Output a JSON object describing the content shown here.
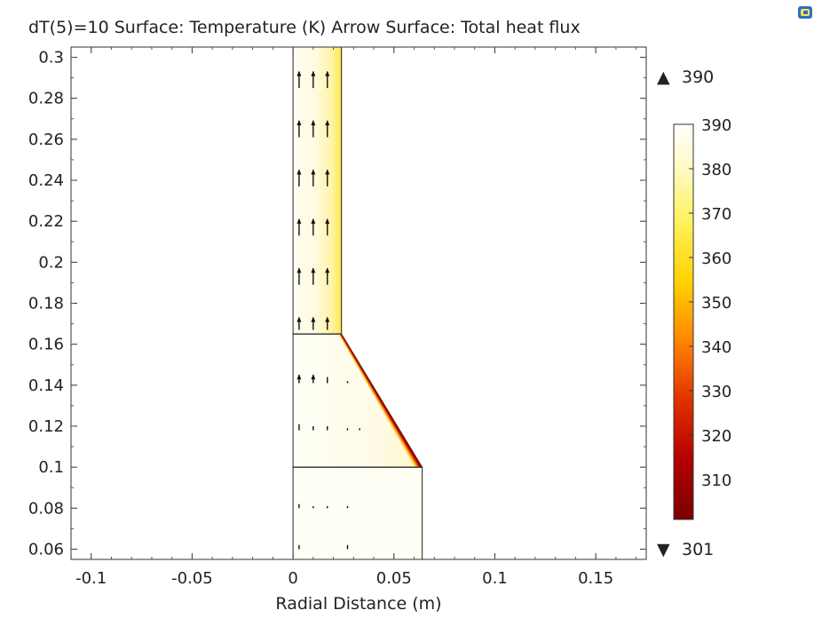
{
  "chart_data": {
    "type": "heatmap",
    "title": "dT(5)=10   Surface: Temperature (K)  Arrow Surface: Total heat flux",
    "xlabel": "Radial Distance (m)",
    "ylabel": "",
    "xlim": [
      -0.11,
      0.175
    ],
    "ylim": [
      0.055,
      0.305
    ],
    "x_ticks": [
      {
        "value": -0.1,
        "label": "-0.1"
      },
      {
        "value": -0.05,
        "label": "-0.05"
      },
      {
        "value": 0,
        "label": "0"
      },
      {
        "value": 0.05,
        "label": "0.05"
      },
      {
        "value": 0.1,
        "label": "0.1"
      },
      {
        "value": 0.15,
        "label": "0.15"
      }
    ],
    "y_ticks": [
      {
        "value": 0.06,
        "label": "0.06"
      },
      {
        "value": 0.08,
        "label": "0.08"
      },
      {
        "value": 0.1,
        "label": "0.1"
      },
      {
        "value": 0.12,
        "label": "0.12"
      },
      {
        "value": 0.14,
        "label": "0.14"
      },
      {
        "value": 0.16,
        "label": "0.16"
      },
      {
        "value": 0.18,
        "label": "0.18"
      },
      {
        "value": 0.2,
        "label": "0.2"
      },
      {
        "value": 0.22,
        "label": "0.22"
      },
      {
        "value": 0.24,
        "label": "0.24"
      },
      {
        "value": 0.26,
        "label": "0.26"
      },
      {
        "value": 0.28,
        "label": "0.28"
      },
      {
        "value": 0.3,
        "label": "0.3"
      }
    ],
    "geometry": {
      "column_top": {
        "r": [
          0,
          0.024
        ],
        "z": [
          0.165,
          0.305
        ]
      },
      "cone": {
        "r_inner": 0,
        "r_top": 0.024,
        "r_bottom": 0.064,
        "z": [
          0.1,
          0.165
        ]
      },
      "base": {
        "r": [
          0,
          0.064
        ],
        "z": [
          0.055,
          0.1
        ]
      }
    },
    "colorbar": {
      "colormap": "heat",
      "min": 301,
      "max": 390,
      "ticks": [
        {
          "value": 390,
          "label": "390"
        },
        {
          "value": 380,
          "label": "380"
        },
        {
          "value": 370,
          "label": "370"
        },
        {
          "value": 360,
          "label": "360"
        },
        {
          "value": 350,
          "label": "350"
        },
        {
          "value": 340,
          "label": "340"
        },
        {
          "value": 330,
          "label": "330"
        },
        {
          "value": 320,
          "label": "320"
        },
        {
          "value": 310,
          "label": "310"
        }
      ],
      "max_label": "390",
      "min_label": "301",
      "max_marker": "▲",
      "min_marker": "▼"
    },
    "arrows": [
      {
        "r": 0.003,
        "z": 0.285,
        "len": 0.008
      },
      {
        "r": 0.01,
        "z": 0.285,
        "len": 0.008
      },
      {
        "r": 0.017,
        "z": 0.285,
        "len": 0.008
      },
      {
        "r": 0.003,
        "z": 0.261,
        "len": 0.008
      },
      {
        "r": 0.01,
        "z": 0.261,
        "len": 0.008
      },
      {
        "r": 0.017,
        "z": 0.261,
        "len": 0.008
      },
      {
        "r": 0.003,
        "z": 0.237,
        "len": 0.008
      },
      {
        "r": 0.01,
        "z": 0.237,
        "len": 0.008
      },
      {
        "r": 0.017,
        "z": 0.237,
        "len": 0.008
      },
      {
        "r": 0.003,
        "z": 0.213,
        "len": 0.008
      },
      {
        "r": 0.01,
        "z": 0.213,
        "len": 0.008
      },
      {
        "r": 0.017,
        "z": 0.213,
        "len": 0.008
      },
      {
        "r": 0.003,
        "z": 0.189,
        "len": 0.008
      },
      {
        "r": 0.01,
        "z": 0.189,
        "len": 0.008
      },
      {
        "r": 0.017,
        "z": 0.189,
        "len": 0.008
      },
      {
        "r": 0.003,
        "z": 0.167,
        "len": 0.006
      },
      {
        "r": 0.01,
        "z": 0.167,
        "len": 0.006
      },
      {
        "r": 0.017,
        "z": 0.167,
        "len": 0.006
      },
      {
        "r": 0.003,
        "z": 0.141,
        "len": 0.004
      },
      {
        "r": 0.01,
        "z": 0.141,
        "len": 0.004
      },
      {
        "r": 0.017,
        "z": 0.141,
        "len": 0.003
      },
      {
        "r": 0.027,
        "z": 0.141,
        "len": 0.001
      },
      {
        "r": 0.003,
        "z": 0.118,
        "len": 0.003
      },
      {
        "r": 0.01,
        "z": 0.118,
        "len": 0.002
      },
      {
        "r": 0.017,
        "z": 0.118,
        "len": 0.002
      },
      {
        "r": 0.027,
        "z": 0.118,
        "len": 0.001
      },
      {
        "r": 0.033,
        "z": 0.118,
        "len": 0.001
      },
      {
        "r": 0.003,
        "z": 0.08,
        "len": 0.002
      },
      {
        "r": 0.01,
        "z": 0.08,
        "len": 0.001
      },
      {
        "r": 0.017,
        "z": 0.08,
        "len": 0.001
      },
      {
        "r": 0.027,
        "z": 0.08,
        "len": 0.001
      },
      {
        "r": 0.003,
        "z": 0.06,
        "len": 0.002
      },
      {
        "r": 0.027,
        "z": 0.06,
        "len": 0.002
      }
    ]
  }
}
